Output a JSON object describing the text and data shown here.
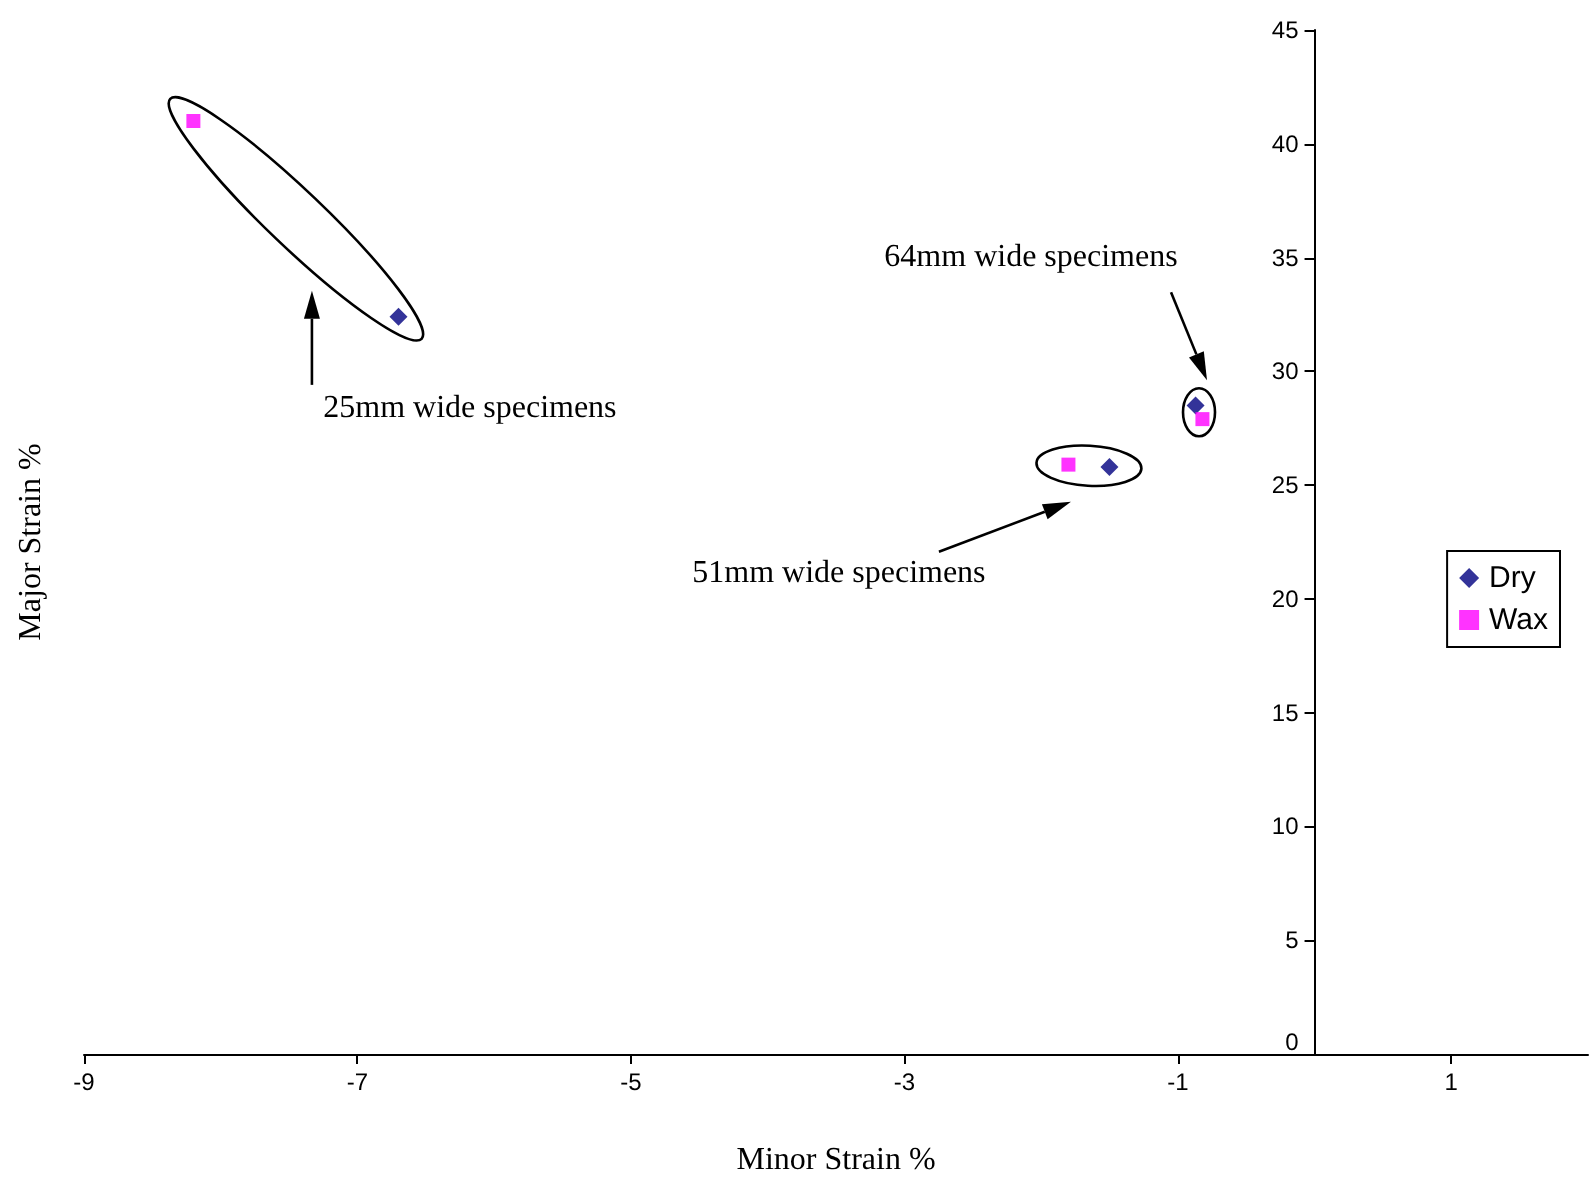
{
  "chart_data": {
    "type": "scatter",
    "xlabel": "Minor Strain %",
    "ylabel": "Major Strain %",
    "series": [
      {
        "name": "Dry",
        "color": "#000080",
        "marker": "diamond",
        "x": [
          -6.7,
          -1.5,
          -0.87
        ],
        "values": [
          32.4,
          25.8,
          28.5
        ]
      },
      {
        "name": "Wax",
        "color": "#ff00ff",
        "marker": "square",
        "x": [
          -8.2,
          -1.8,
          -0.82
        ],
        "values": [
          41.0,
          25.9,
          27.9
        ]
      }
    ],
    "annotations": [
      "25mm wide specimens",
      "51mm wide specimens",
      "64mm wide specimens"
    ],
    "xlim": [
      -9,
      2
    ],
    "xticks": [
      -9,
      -7,
      -5,
      -3,
      -1,
      1
    ],
    "ylim": [
      0,
      45
    ],
    "yticks": [
      0,
      5,
      10,
      15,
      20,
      25,
      30,
      35,
      40,
      45
    ],
    "grid": false,
    "legend": "right"
  }
}
